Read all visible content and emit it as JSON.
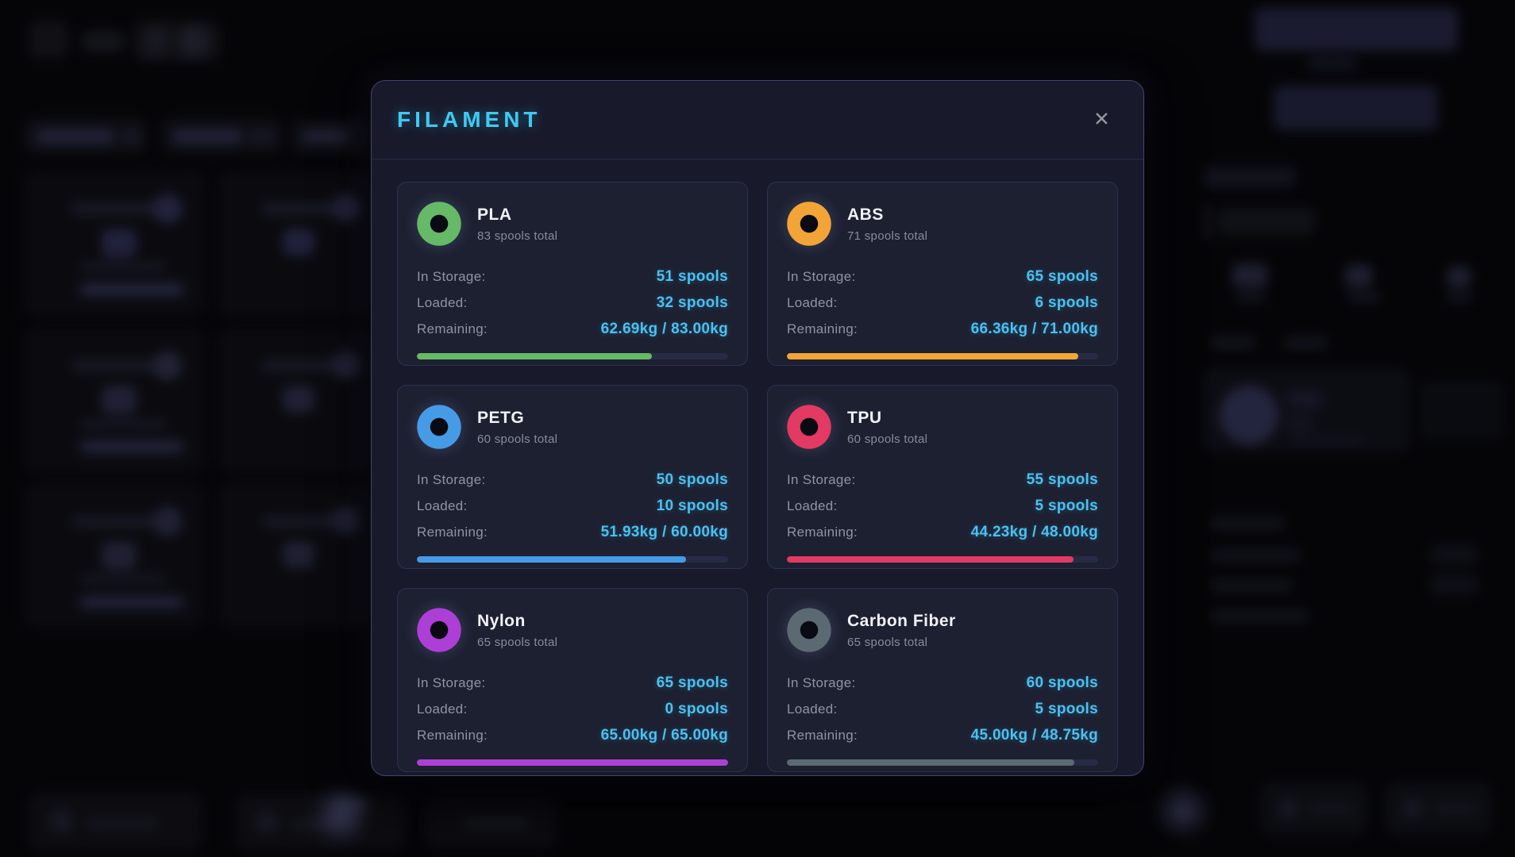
{
  "modal": {
    "title": "FILAMENT",
    "close_glyph": "✕",
    "accent_color": "#3fc9f2",
    "row_labels": {
      "in_storage": "In Storage:",
      "loaded": "Loaded:",
      "remaining": "Remaining:"
    },
    "materials": [
      {
        "name": "PLA",
        "total": "83 spools total",
        "in_storage": "51 spools",
        "loaded": "32 spools",
        "remaining": "62.69kg / 83.00kg",
        "percent": 75.5,
        "color": "#66b966"
      },
      {
        "name": "ABS",
        "total": "71 spools total",
        "in_storage": "65 spools",
        "loaded": "6 spools",
        "remaining": "66.36kg / 71.00kg",
        "percent": 93.5,
        "color": "#f3a437"
      },
      {
        "name": "PETG",
        "total": "60 spools total",
        "in_storage": "50 spools",
        "loaded": "10 spools",
        "remaining": "51.93kg / 60.00kg",
        "percent": 86.5,
        "color": "#459be6"
      },
      {
        "name": "TPU",
        "total": "60 spools total",
        "in_storage": "55 spools",
        "loaded": "5 spools",
        "remaining": "44.23kg / 48.00kg",
        "percent": 92.1,
        "color": "#e23a62"
      },
      {
        "name": "Nylon",
        "total": "65 spools total",
        "in_storage": "65 spools",
        "loaded": "0 spools",
        "remaining": "65.00kg / 65.00kg",
        "percent": 100,
        "color": "#ae3fd6"
      },
      {
        "name": "Carbon Fiber",
        "total": "65 spools total",
        "in_storage": "60 spools",
        "loaded": "5 spools",
        "remaining": "45.00kg / 48.75kg",
        "percent": 92.3,
        "color": "#5b6973"
      }
    ]
  }
}
